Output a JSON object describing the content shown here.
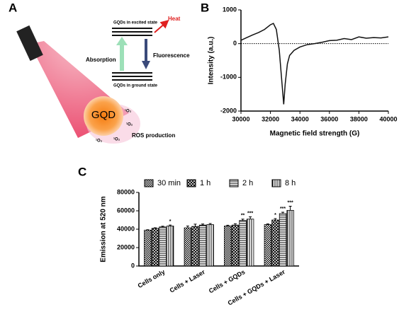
{
  "panel_labels": [
    "A",
    "B",
    "C"
  ],
  "diagram": {
    "absorption": "Absorption",
    "excited_state": "GQDs in excited state",
    "heat": "Heat",
    "fluorescence": "Fluorescence",
    "ground_state": "GQDs in ground state",
    "particle": "GQD",
    "ros": "ROS production",
    "singlet_oxygen": [
      "¹O₂",
      "¹O₂",
      "¹O₂",
      "¹O₂"
    ]
  },
  "chart_data": [
    {
      "type": "line",
      "xlabel": "Magnetic field strength (G)",
      "ylabel": "Intensity (a.u.)",
      "x": [
        30000,
        30400,
        30800,
        31200,
        31600,
        32000,
        32200,
        32400,
        32600,
        32750,
        32900,
        33000,
        33150,
        33300,
        33600,
        34000,
        34500,
        35000,
        35500,
        36000,
        36500,
        37000,
        37500,
        38000,
        38500,
        39000,
        39500,
        40000
      ],
      "values": [
        100,
        180,
        260,
        330,
        420,
        560,
        600,
        420,
        -200,
        -1000,
        -1800,
        -1200,
        -600,
        -350,
        -200,
        -100,
        -30,
        0,
        40,
        90,
        100,
        150,
        120,
        200,
        160,
        180,
        170,
        200
      ],
      "color": "#111",
      "xlim": [
        30000,
        40000
      ],
      "xticks": [
        30000,
        32000,
        34000,
        36000,
        38000,
        40000
      ],
      "ylim": [
        -2000,
        1000
      ],
      "yticks": [
        -2000,
        -1000,
        0,
        1000
      ],
      "zero_line": true
    },
    {
      "type": "bar",
      "ylabel": "Emission at 520 nm",
      "categories": [
        "Cells only",
        "Cells + Laser",
        "Cells + GQDs",
        "Cells + GQDs + Laser"
      ],
      "series": [
        {
          "name": "30 min",
          "color": "#000",
          "pattern": "checker",
          "values": [
            39000,
            41500,
            43500,
            45000
          ],
          "errors": [
            400,
            2000,
            800,
            800
          ],
          "significance": [
            null,
            null,
            null,
            null
          ]
        },
        {
          "name": "1 h",
          "color": "#000",
          "pattern": "cross",
          "values": [
            41000,
            43000,
            44500,
            50000
          ],
          "errors": [
            500,
            2500,
            1500,
            1500
          ],
          "significance": [
            null,
            null,
            null,
            "*"
          ]
        },
        {
          "name": "2 h",
          "color": "#000",
          "pattern": "hlines",
          "values": [
            42500,
            44500,
            49500,
            57000
          ],
          "errors": [
            800,
            1200,
            1500,
            1500
          ],
          "significance": [
            null,
            null,
            "**",
            "***"
          ]
        },
        {
          "name": "8 h",
          "color": "#000",
          "pattern": "vlines",
          "values": [
            43500,
            45000,
            51000,
            60500
          ],
          "errors": [
            1000,
            1200,
            2500,
            4500
          ],
          "significance": [
            "*",
            null,
            "***",
            "***"
          ]
        }
      ],
      "ylim": [
        0,
        80000
      ],
      "yticks": [
        0,
        20000,
        40000,
        60000,
        80000
      ]
    }
  ]
}
